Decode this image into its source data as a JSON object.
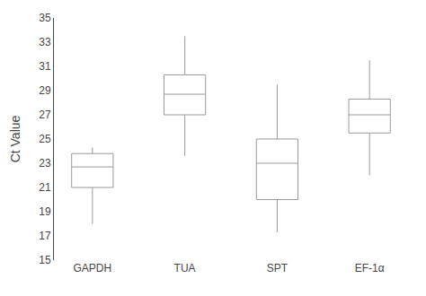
{
  "chart_data": {
    "type": "box",
    "categories": [
      "GAPDH",
      "TUA",
      "SPT",
      "EF-1α"
    ],
    "boxes": [
      {
        "whislo": 18.0,
        "q1": 21.0,
        "med": 22.7,
        "q3": 23.8,
        "whishi": 24.3
      },
      {
        "whislo": 23.6,
        "q1": 27.0,
        "med": 28.7,
        "q3": 30.3,
        "whishi": 33.5
      },
      {
        "whislo": 17.3,
        "q1": 20.0,
        "med": 23.0,
        "q3": 25.0,
        "whishi": 29.5
      },
      {
        "whislo": 22.0,
        "q1": 25.5,
        "med": 27.0,
        "q3": 28.3,
        "whishi": 31.5
      }
    ],
    "ylabel": "Ct Value",
    "ylim": [
      15,
      35
    ],
    "yticks": [
      15,
      17,
      19,
      21,
      23,
      25,
      27,
      29,
      31,
      33,
      35
    ],
    "color": "#999999",
    "grid": false
  }
}
